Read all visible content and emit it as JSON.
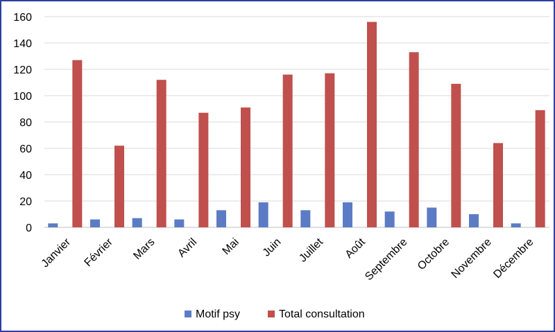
{
  "chart_data": {
    "type": "bar",
    "categories": [
      "Janvier",
      "Février",
      "Mars",
      "Avril",
      "Mai",
      "Juin",
      "Juillet",
      "Août",
      "Septembre",
      "Octobre",
      "Novembre",
      "Décembre"
    ],
    "series": [
      {
        "name": "Motif psy",
        "color": "#5b7cc4",
        "values": [
          3,
          6,
          7,
          6,
          13,
          19,
          13,
          19,
          12,
          15,
          10,
          3
        ]
      },
      {
        "name": "Total consultation",
        "color": "#c0504d",
        "values": [
          127,
          62,
          112,
          87,
          91,
          116,
          117,
          156,
          133,
          109,
          64,
          89
        ]
      }
    ],
    "ylim": [
      0,
      160
    ],
    "yticks": [
      0,
      20,
      40,
      60,
      80,
      100,
      120,
      140,
      160
    ],
    "grid": true,
    "legend_position": "bottom"
  }
}
